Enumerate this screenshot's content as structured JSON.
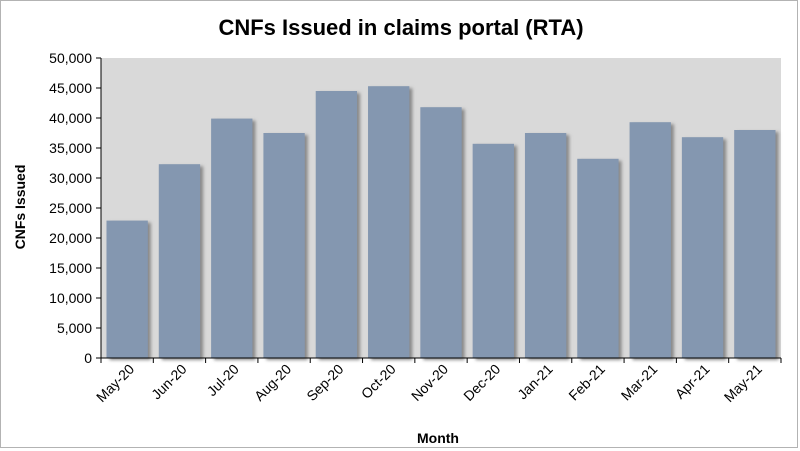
{
  "chart_data": {
    "type": "bar",
    "title": "CNFs Issued in claims portal (RTA)",
    "xlabel": "Month",
    "ylabel": "CNFs Issued",
    "categories": [
      "May-20",
      "Jun-20",
      "Jul-20",
      "Aug-20",
      "Sep-20",
      "Oct-20",
      "Nov-20",
      "Dec-20",
      "Jan-21",
      "Feb-21",
      "Mar-21",
      "Apr-21",
      "May-21"
    ],
    "values": [
      22900,
      32300,
      39900,
      37500,
      44500,
      45300,
      41800,
      35700,
      37500,
      33200,
      39300,
      36800,
      38000
    ],
    "ylim": [
      0,
      50000
    ],
    "yticks": [
      "0",
      "5,000",
      "10,000",
      "15,000",
      "20,000",
      "25,000",
      "30,000",
      "35,000",
      "40,000",
      "45,000",
      "50,000"
    ],
    "grid": false,
    "legend": "none",
    "colors": {
      "bar": "#8497b0",
      "shadow": "#7f7f7f",
      "plot_background": "#d9d9d9",
      "axis": "#000000"
    }
  }
}
